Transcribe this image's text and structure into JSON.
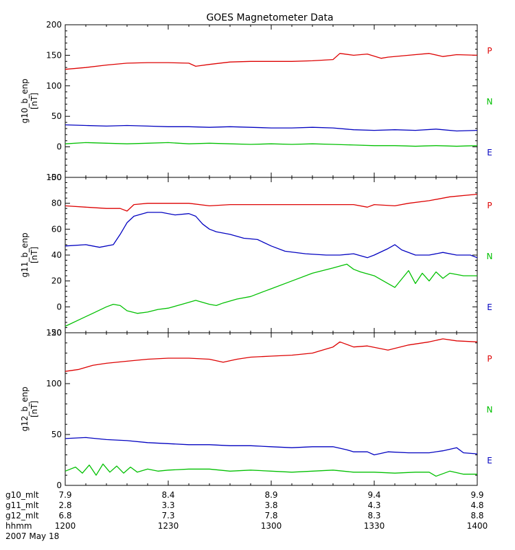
{
  "chart_data": {
    "type": "line",
    "title": "GOES Magnetometer Data",
    "x_range": [
      0,
      120
    ],
    "x_ticks": [
      0,
      30,
      60,
      90,
      120
    ],
    "legend_labels": [
      {
        "text": "P",
        "color": "#dd0000"
      },
      {
        "text": "N",
        "color": "#00c000"
      },
      {
        "text": "E",
        "color": "#0000c0"
      }
    ],
    "panels": [
      {
        "ylabel": "g10_b_enp",
        "unit": "[nT]",
        "ylim": [
          -50,
          200
        ],
        "yticks": [
          -50,
          0,
          50,
          100,
          150,
          200
        ],
        "ytick_labels": [
          "-50",
          "0",
          "50",
          "100",
          "150",
          "200"
        ],
        "series": [
          {
            "name": "P",
            "color": "#dd0000",
            "x": [
              0,
              6,
              12,
              18,
              24,
              30,
              36,
              38,
              42,
              48,
              54,
              60,
              66,
              72,
              78,
              80,
              84,
              88,
              92,
              94,
              100,
              106,
              110,
              114,
              120
            ],
            "y": [
              127,
              130,
              134,
              137,
              138,
              138,
              137,
              132,
              135,
              139,
              140,
              140,
              140,
              141,
              143,
              153,
              150,
              152,
              145,
              147,
              150,
              153,
              148,
              151,
              150
            ]
          },
          {
            "name": "N",
            "color": "#00c000",
            "x": [
              0,
              6,
              12,
              18,
              24,
              30,
              36,
              42,
              48,
              54,
              60,
              66,
              72,
              78,
              84,
              90,
              96,
              102,
              108,
              114,
              120
            ],
            "y": [
              5,
              7,
              6,
              5,
              6,
              7,
              5,
              6,
              5,
              4,
              5,
              4,
              5,
              4,
              3,
              2,
              2,
              1,
              2,
              1,
              2
            ]
          },
          {
            "name": "E",
            "color": "#0000c0",
            "x": [
              0,
              6,
              12,
              18,
              24,
              30,
              36,
              42,
              48,
              54,
              60,
              66,
              72,
              78,
              84,
              90,
              96,
              102,
              108,
              114,
              120
            ],
            "y": [
              36,
              35,
              34,
              35,
              34,
              33,
              33,
              32,
              33,
              32,
              31,
              31,
              32,
              31,
              28,
              27,
              28,
              27,
              29,
              26,
              27
            ]
          }
        ]
      },
      {
        "ylabel": "g11_b_enp",
        "unit": "[nT]",
        "ylim": [
          -20,
          100
        ],
        "yticks": [
          -20,
          0,
          20,
          40,
          60,
          80,
          100
        ],
        "ytick_labels": [
          "-20",
          "0",
          "20",
          "40",
          "60",
          "80",
          "100"
        ],
        "series": [
          {
            "name": "P",
            "color": "#dd0000",
            "x": [
              0,
              6,
              12,
              16,
              18,
              20,
              24,
              30,
              36,
              42,
              48,
              54,
              60,
              66,
              72,
              78,
              84,
              88,
              90,
              96,
              100,
              106,
              112,
              120
            ],
            "y": [
              78,
              77,
              76,
              76,
              74,
              79,
              80,
              80,
              80,
              78,
              79,
              79,
              79,
              79,
              79,
              79,
              79,
              77,
              79,
              78,
              80,
              82,
              85,
              87
            ]
          },
          {
            "name": "N",
            "color": "#00c000",
            "x": [
              0,
              4,
              8,
              12,
              14,
              16,
              18,
              21,
              24,
              27,
              30,
              34,
              38,
              42,
              44,
              46,
              50,
              54,
              58,
              60,
              66,
              72,
              78,
              82,
              84,
              86,
              90,
              94,
              96,
              100,
              102,
              104,
              106,
              108,
              110,
              112,
              116,
              120
            ],
            "y": [
              -15,
              -10,
              -5,
              0,
              2,
              1,
              -3,
              -5,
              -4,
              -2,
              -1,
              2,
              5,
              2,
              1,
              3,
              6,
              8,
              12,
              14,
              20,
              26,
              30,
              33,
              29,
              27,
              24,
              18,
              15,
              28,
              18,
              26,
              20,
              27,
              22,
              26,
              24,
              24
            ]
          },
          {
            "name": "E",
            "color": "#0000c0",
            "x": [
              0,
              6,
              10,
              14,
              16,
              18,
              20,
              24,
              28,
              32,
              36,
              38,
              40,
              42,
              44,
              48,
              52,
              56,
              60,
              64,
              70,
              76,
              80,
              84,
              88,
              90,
              94,
              96,
              98,
              102,
              106,
              110,
              114,
              118,
              120
            ],
            "y": [
              47,
              48,
              46,
              48,
              56,
              65,
              70,
              73,
              73,
              71,
              72,
              70,
              64,
              60,
              58,
              56,
              53,
              52,
              47,
              43,
              41,
              40,
              40,
              41,
              38,
              40,
              45,
              48,
              44,
              40,
              40,
              42,
              40,
              40,
              38
            ]
          }
        ]
      },
      {
        "ylabel": "g12_b_enp",
        "unit": "[nT]",
        "ylim": [
          0,
          150
        ],
        "yticks": [
          0,
          50,
          100,
          150
        ],
        "ytick_labels": [
          "0",
          "50",
          "100",
          "150"
        ],
        "series": [
          {
            "name": "P",
            "color": "#dd0000",
            "x": [
              0,
              4,
              8,
              12,
              18,
              24,
              30,
              36,
              42,
              46,
              50,
              54,
              60,
              66,
              72,
              78,
              80,
              84,
              88,
              94,
              100,
              106,
              110,
              114,
              120
            ],
            "y": [
              112,
              114,
              118,
              120,
              122,
              124,
              125,
              125,
              124,
              121,
              124,
              126,
              127,
              128,
              130,
              136,
              141,
              136,
              137,
              133,
              138,
              141,
              144,
              142,
              141
            ]
          },
          {
            "name": "N",
            "color": "#00c000",
            "x": [
              0,
              3,
              5,
              7,
              9,
              11,
              13,
              15,
              17,
              19,
              21,
              24,
              27,
              30,
              36,
              42,
              48,
              54,
              60,
              66,
              72,
              78,
              84,
              90,
              96,
              102,
              106,
              108,
              112,
              116,
              120
            ],
            "y": [
              14,
              18,
              12,
              20,
              10,
              21,
              13,
              19,
              12,
              18,
              13,
              16,
              14,
              15,
              16,
              16,
              14,
              15,
              14,
              13,
              14,
              15,
              13,
              13,
              12,
              13,
              13,
              9,
              14,
              11,
              11
            ]
          },
          {
            "name": "E",
            "color": "#0000c0",
            "x": [
              0,
              6,
              12,
              18,
              24,
              30,
              36,
              42,
              48,
              54,
              60,
              66,
              72,
              78,
              82,
              84,
              88,
              90,
              94,
              100,
              106,
              110,
              114,
              116,
              120
            ],
            "y": [
              46,
              47,
              45,
              44,
              42,
              41,
              40,
              40,
              39,
              39,
              38,
              37,
              38,
              38,
              35,
              33,
              33,
              30,
              33,
              32,
              32,
              34,
              37,
              32,
              31
            ]
          }
        ]
      }
    ],
    "x_info": {
      "rows": [
        {
          "label": "g10_mlt",
          "values": [
            "7.9",
            "8.4",
            "8.9",
            "9.4",
            "9.9"
          ]
        },
        {
          "label": "g11_mlt",
          "values": [
            "2.8",
            "3.3",
            "3.8",
            "4.3",
            "4.8"
          ]
        },
        {
          "label": "g12_mlt",
          "values": [
            "6.8",
            "7.3",
            "7.8",
            "8.3",
            "8.8"
          ]
        },
        {
          "label": "hhmm",
          "values": [
            "1200",
            "1230",
            "1300",
            "1330",
            "1400"
          ]
        }
      ],
      "date": "2007 May 18"
    }
  }
}
